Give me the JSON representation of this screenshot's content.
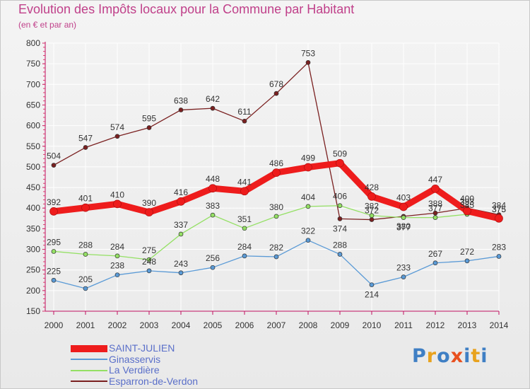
{
  "title": "Evolution des Impôts locaux pour la Commune par Habitant",
  "subtitle": "(en € et par an)",
  "logo": {
    "text": "Proxiti",
    "colors": [
      "#3f7fc4",
      "#e8a21e",
      "#3f7fc4",
      "#e8501e",
      "#3f7fc4",
      "#e8a21e",
      "#3f7fc4"
    ]
  },
  "chart_data": {
    "type": "line",
    "title": "Evolution des Impôts locaux pour la Commune par Habitant",
    "ylabel": "(en € et par an)",
    "xlabel": "",
    "ylim": [
      150,
      800
    ],
    "yticks": [
      150,
      200,
      250,
      300,
      350,
      400,
      450,
      500,
      550,
      600,
      650,
      700,
      750,
      800
    ],
    "categories": [
      "2000",
      "2001",
      "2002",
      "2003",
      "2004",
      "2005",
      "2006",
      "2007",
      "2008",
      "2009",
      "2010",
      "2011",
      "2012",
      "2013",
      "2014"
    ],
    "grid": true,
    "legend": "bottom-left",
    "series": [
      {
        "name": "SAINT-JULIEN",
        "color": "#ee1c1c",
        "values": [
          392,
          401,
          410,
          390,
          416,
          448,
          441,
          486,
          499,
          509,
          428,
          403,
          447,
          393,
          375
        ]
      },
      {
        "name": "Ginasservis",
        "color": "#5a9ad6",
        "values": [
          225,
          205,
          238,
          248,
          243,
          256,
          284,
          282,
          322,
          288,
          214,
          233,
          267,
          272,
          283
        ]
      },
      {
        "name": "La Verdière",
        "color": "#94e064",
        "values": [
          295,
          288,
          284,
          275,
          337,
          383,
          351,
          380,
          404,
          406,
          382,
          377,
          377,
          385,
          375
        ]
      },
      {
        "name": "Esparron-de-Verdon",
        "color": "#7a2020",
        "values": [
          504,
          547,
          574,
          595,
          638,
          642,
          611,
          678,
          753,
          374,
          372,
          380,
          388,
          400,
          384
        ]
      }
    ]
  }
}
